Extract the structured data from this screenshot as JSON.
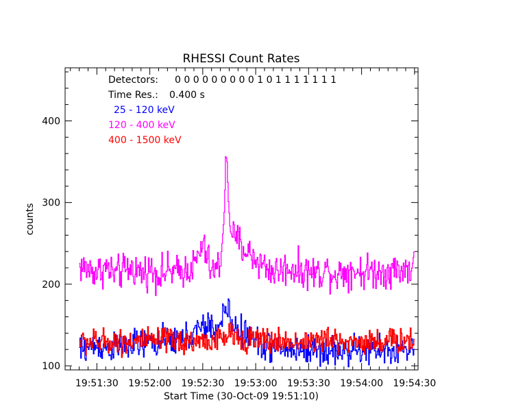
{
  "chart_data": {
    "type": "line",
    "title": "RHESSI Count Rates",
    "xlabel": "Start Time (30-Oct-09 19:51:10)",
    "ylabel": "counts",
    "x_ticks": [
      "19:51:30",
      "19:52:00",
      "19:52:30",
      "19:53:00",
      "19:53:30",
      "19:54:00",
      "19:54:30"
    ],
    "x_tick_seconds": [
      20,
      50,
      80,
      110,
      140,
      170,
      200
    ],
    "x_range_seconds": [
      2,
      202
    ],
    "y_ticks": [
      100,
      200,
      300,
      400
    ],
    "ylim": [
      95,
      465
    ],
    "info_lines": [
      {
        "label": "Detectors:",
        "value": "0 0 0 0 0 0 0 0 0 1 0 1 1 1 1 1 1 1"
      },
      {
        "label": "Time Res.:",
        "value": "0.400 s"
      }
    ],
    "series": [
      {
        "name": "120 - 400 keV",
        "color": "#ff00ff",
        "time_seconds": [
          10,
          15,
          20,
          25,
          30,
          35,
          40,
          45,
          50,
          55,
          60,
          65,
          70,
          75,
          78,
          80,
          83,
          85,
          88,
          90,
          91,
          92,
          93,
          94,
          95,
          96,
          97,
          98,
          100,
          102,
          105,
          110,
          115,
          120,
          125,
          130,
          135,
          140,
          145,
          150,
          155,
          160,
          165,
          170,
          175,
          180,
          185,
          200
        ],
        "values": [
          222,
          218,
          215,
          220,
          212,
          216,
          220,
          214,
          218,
          212,
          216,
          214,
          218,
          222,
          238,
          248,
          228,
          214,
          220,
          230,
          255,
          300,
          360,
          318,
          280,
          270,
          262,
          250,
          255,
          245,
          240,
          230,
          222,
          215,
          218,
          220,
          216,
          215,
          213,
          218,
          212,
          216,
          218,
          214,
          216,
          215,
          217,
          220
        ]
      },
      {
        "name": "25 - 120 keV",
        "color": "#0000ff",
        "time_seconds": [
          10,
          20,
          30,
          40,
          50,
          60,
          70,
          75,
          80,
          85,
          88,
          90,
          91,
          92,
          94,
          96,
          98,
          100,
          105,
          110,
          115,
          120,
          130,
          140,
          150,
          160,
          170,
          180,
          200
        ],
        "values": [
          120,
          125,
          122,
          126,
          128,
          130,
          134,
          140,
          146,
          150,
          142,
          150,
          160,
          168,
          168,
          155,
          148,
          145,
          138,
          130,
          126,
          122,
          120,
          120,
          118,
          118,
          120,
          118,
          120
        ]
      },
      {
        "name": "400 - 1500 keV",
        "color": "#ff0000",
        "time_seconds": [
          10,
          20,
          30,
          40,
          50,
          60,
          70,
          80,
          90,
          94,
          100,
          110,
          120,
          130,
          140,
          150,
          160,
          170,
          180,
          200
        ],
        "values": [
          130,
          129,
          130,
          131,
          130,
          131,
          130,
          130,
          132,
          138,
          135,
          132,
          130,
          129,
          130,
          131,
          130,
          130,
          130,
          131
        ]
      }
    ]
  }
}
